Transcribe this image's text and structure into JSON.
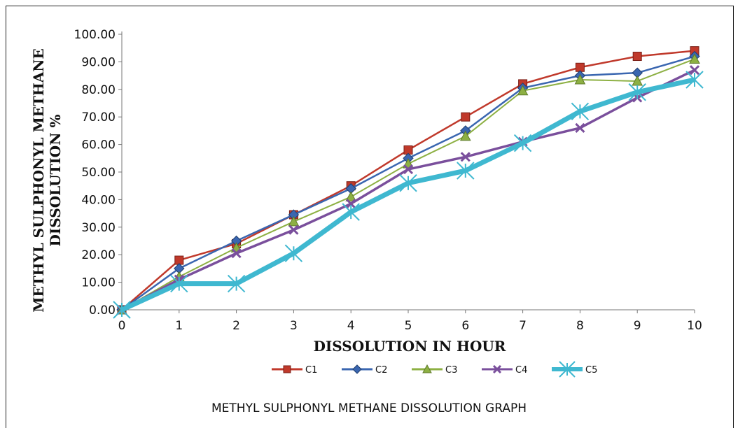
{
  "chart_data": {
    "type": "line",
    "title": "",
    "xlabel": "DISSOLUTION IN HOUR",
    "ylabel": "METHYL SULPHONYL METHANE DISSOLUTION %",
    "x": [
      0,
      1,
      2,
      3,
      4,
      5,
      6,
      7,
      8,
      9,
      10
    ],
    "xticks": [
      "0",
      "1",
      "2",
      "3",
      "4",
      "5",
      "6",
      "7",
      "8",
      "9",
      "10"
    ],
    "yticks": [
      "0.00",
      "10.00",
      "20.00",
      "30.00",
      "40.00",
      "50.00",
      "60.00",
      "70.00",
      "80.00",
      "90.00",
      "100.00"
    ],
    "ylim": [
      0,
      100
    ],
    "xlim": [
      0,
      10
    ],
    "grid": false,
    "legend_position": "bottom",
    "series": [
      {
        "name": "C1",
        "color": "#C0392B",
        "marker": "square",
        "values": [
          0,
          18,
          24,
          34.5,
          45,
          58,
          70,
          82,
          88,
          92,
          94
        ]
      },
      {
        "name": "C2",
        "color": "#3A66B0",
        "marker": "diamond",
        "values": [
          0,
          15,
          25,
          34.5,
          44,
          55,
          65,
          80.5,
          85,
          86,
          92
        ]
      },
      {
        "name": "C3",
        "color": "#8DB043",
        "marker": "triangle",
        "values": [
          0,
          12,
          22.5,
          32,
          41,
          53,
          63,
          79.5,
          83.5,
          83,
          91
        ]
      },
      {
        "name": "C4",
        "color": "#7A4F9C",
        "marker": "cross",
        "values": [
          0,
          11,
          20.5,
          29,
          38.5,
          51,
          55.5,
          61,
          66,
          77,
          87
        ]
      },
      {
        "name": "C5",
        "color": "#3FB8D0",
        "marker": "star",
        "values": [
          0,
          9.5,
          9.5,
          20.5,
          35.5,
          46,
          50.5,
          60.5,
          72,
          79,
          83.5
        ]
      }
    ],
    "caption": "METHYL SULPHONYL METHANE DISSOLUTION GRAPH"
  }
}
